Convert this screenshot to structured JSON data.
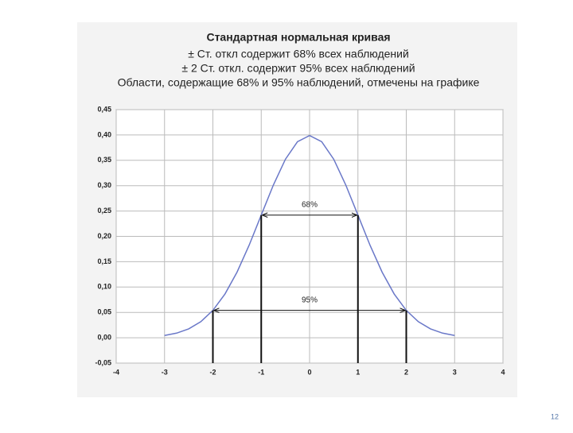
{
  "chart_data": {
    "type": "line",
    "title": "Стандартная нормальная кривая",
    "subtitle": [
      "± Ст. откл содержит 68% всех наблюдений",
      "± 2 Ст. откл. содержит 95% всех наблюдений",
      "Области, содержащие 68% и 95% наблюдений, отмечены на графике"
    ],
    "x": [
      -3,
      -2.75,
      -2.5,
      -2.25,
      -2,
      -1.75,
      -1.5,
      -1.25,
      -1,
      -0.75,
      -0.5,
      -0.25,
      0,
      0.25,
      0.5,
      0.75,
      1,
      1.25,
      1.5,
      1.75,
      2,
      2.25,
      2.5,
      2.75,
      3
    ],
    "series": [
      {
        "color": "#6a78c8",
        "values": [
          0.0044,
          0.0091,
          0.0175,
          0.0317,
          0.054,
          0.0863,
          0.1295,
          0.1826,
          0.242,
          0.3011,
          0.3521,
          0.3867,
          0.3989,
          0.3867,
          0.3521,
          0.3011,
          0.242,
          0.1826,
          0.1295,
          0.0863,
          0.054,
          0.0317,
          0.0175,
          0.0091,
          0.0044
        ]
      }
    ],
    "xlim": [
      -4,
      4
    ],
    "xticks": [
      -4,
      -3,
      -2,
      -1,
      0,
      1,
      2,
      3,
      4
    ],
    "ylim": [
      -0.05,
      0.45
    ],
    "yticks": [
      {
        "value": -0.05,
        "label": "-0,05"
      },
      {
        "value": 0,
        "label": "0,00"
      },
      {
        "value": 0.05,
        "label": "0,05"
      },
      {
        "value": 0.1,
        "label": "0,10"
      },
      {
        "value": 0.15,
        "label": "0,15"
      },
      {
        "value": 0.2,
        "label": "0,20"
      },
      {
        "value": 0.25,
        "label": "0,25"
      },
      {
        "value": 0.3,
        "label": "0,30"
      },
      {
        "value": 0.35,
        "label": "0,35"
      },
      {
        "value": 0.4,
        "label": "0,40"
      },
      {
        "value": 0.45,
        "label": "0,45"
      }
    ],
    "grid": true,
    "annotations": [
      {
        "text": "68%",
        "x1": -1,
        "x2": 1,
        "y": 0.242
      },
      {
        "text": "95%",
        "x1": -2,
        "x2": 2,
        "y": 0.054
      }
    ]
  },
  "slide_number": "12"
}
